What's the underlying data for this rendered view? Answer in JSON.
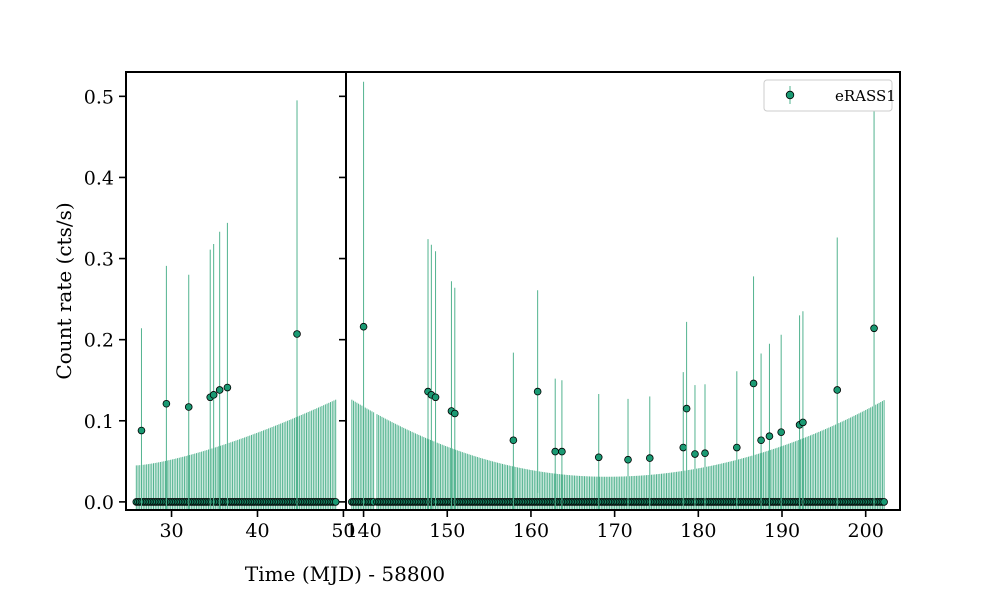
{
  "chart_data": {
    "type": "scatter",
    "ylabel": "Count rate (cts/s)",
    "xlabel": "Time (MJD) - 58800",
    "ylim": [
      -0.01,
      0.53
    ],
    "yticks": [
      0.0,
      0.1,
      0.2,
      0.3,
      0.4,
      0.5
    ],
    "grid": false,
    "legend": {
      "position": "top-right",
      "entries": [
        "eRASS1"
      ]
    },
    "colors": {
      "marker": "#1a9a73",
      "errorbar": "#52b38f",
      "marker_edge": "#000000",
      "frame": "#000000"
    },
    "panels": [
      {
        "name": "left",
        "xlim": [
          24.7,
          50.3
        ],
        "xticks": [
          30,
          40,
          50
        ],
        "points": [
          {
            "x": 26.5,
            "y": 0.088,
            "err": 0.126
          },
          {
            "x": 29.4,
            "y": 0.121,
            "err": 0.17
          },
          {
            "x": 32.0,
            "y": 0.117,
            "err": 0.163
          },
          {
            "x": 34.5,
            "y": 0.129,
            "err": 0.182
          },
          {
            "x": 34.9,
            "y": 0.132,
            "err": 0.186
          },
          {
            "x": 35.6,
            "y": 0.138,
            "err": 0.195
          },
          {
            "x": 36.5,
            "y": 0.141,
            "err": 0.203
          },
          {
            "x": 44.6,
            "y": 0.207,
            "err": 0.288
          }
        ],
        "zero_run": {
          "x_start": 25.9,
          "x_end": 49.1,
          "step": 0.2,
          "err_start": 0.045,
          "err_end": 0.126
        }
      },
      {
        "name": "right",
        "xlim": [
          137.9,
          204.1
        ],
        "xticks": [
          140,
          150,
          160,
          170,
          180,
          190,
          200
        ],
        "points": [
          {
            "x": 140.0,
            "y": 0.216,
            "err": 0.302
          },
          {
            "x": 147.7,
            "y": 0.136,
            "err": 0.188
          },
          {
            "x": 148.1,
            "y": 0.132,
            "err": 0.185
          },
          {
            "x": 148.6,
            "y": 0.129,
            "err": 0.18
          },
          {
            "x": 150.5,
            "y": 0.112,
            "err": 0.16
          },
          {
            "x": 150.9,
            "y": 0.109,
            "err": 0.155
          },
          {
            "x": 157.9,
            "y": 0.076,
            "err": 0.108
          },
          {
            "x": 160.8,
            "y": 0.136,
            "err": 0.125
          },
          {
            "x": 162.9,
            "y": 0.062,
            "err": 0.09
          },
          {
            "x": 163.7,
            "y": 0.062,
            "err": 0.088
          },
          {
            "x": 168.1,
            "y": 0.055,
            "err": 0.078
          },
          {
            "x": 171.6,
            "y": 0.052,
            "err": 0.075
          },
          {
            "x": 174.2,
            "y": 0.054,
            "err": 0.076
          },
          {
            "x": 178.2,
            "y": 0.067,
            "err": 0.093
          },
          {
            "x": 178.6,
            "y": 0.115,
            "err": 0.107
          },
          {
            "x": 179.6,
            "y": 0.059,
            "err": 0.085
          },
          {
            "x": 180.8,
            "y": 0.06,
            "err": 0.085
          },
          {
            "x": 184.6,
            "y": 0.067,
            "err": 0.094
          },
          {
            "x": 186.6,
            "y": 0.146,
            "err": 0.132
          },
          {
            "x": 187.5,
            "y": 0.076,
            "err": 0.107
          },
          {
            "x": 188.5,
            "y": 0.081,
            "err": 0.114
          },
          {
            "x": 189.9,
            "y": 0.086,
            "err": 0.12
          },
          {
            "x": 192.1,
            "y": 0.095,
            "err": 0.135
          },
          {
            "x": 192.5,
            "y": 0.098,
            "err": 0.137
          },
          {
            "x": 196.6,
            "y": 0.138,
            "err": 0.188
          },
          {
            "x": 201.0,
            "y": 0.214,
            "err": 0.27
          }
        ],
        "zero_run": {
          "x_start": 138.6,
          "x_end": 202.3,
          "step": 0.2,
          "gap": [
            141.2,
            141.5
          ],
          "err_min": 0.031,
          "err_edge": 0.126,
          "min_at": 169.0
        }
      }
    ]
  }
}
